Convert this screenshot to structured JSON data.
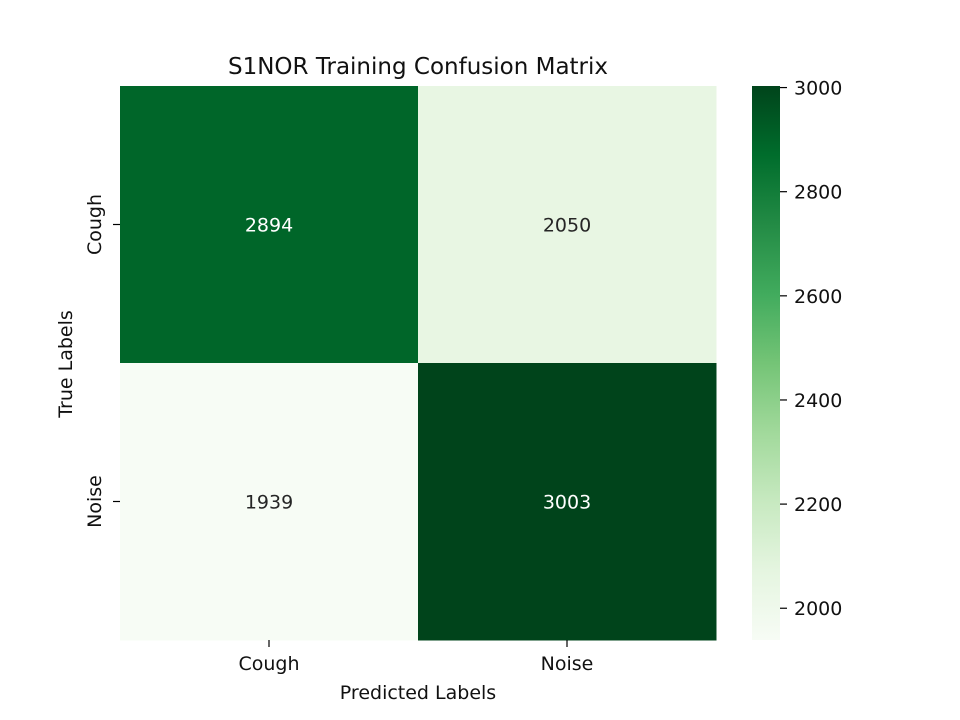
{
  "chart_data": {
    "type": "heatmap",
    "title": "S1NOR Training Confusion Matrix",
    "xlabel": "Predicted Labels",
    "ylabel": "True Labels",
    "x_categories": [
      "Cough",
      "Noise"
    ],
    "y_categories": [
      "Cough",
      "Noise"
    ],
    "matrix": [
      [
        2894,
        2050
      ],
      [
        1939,
        3003
      ]
    ],
    "colormap": "Greens",
    "colorbar": {
      "vmin": 1939,
      "vmax": 3003,
      "ticks": [
        3000,
        2800,
        2600,
        2400,
        2200,
        2000
      ]
    }
  }
}
